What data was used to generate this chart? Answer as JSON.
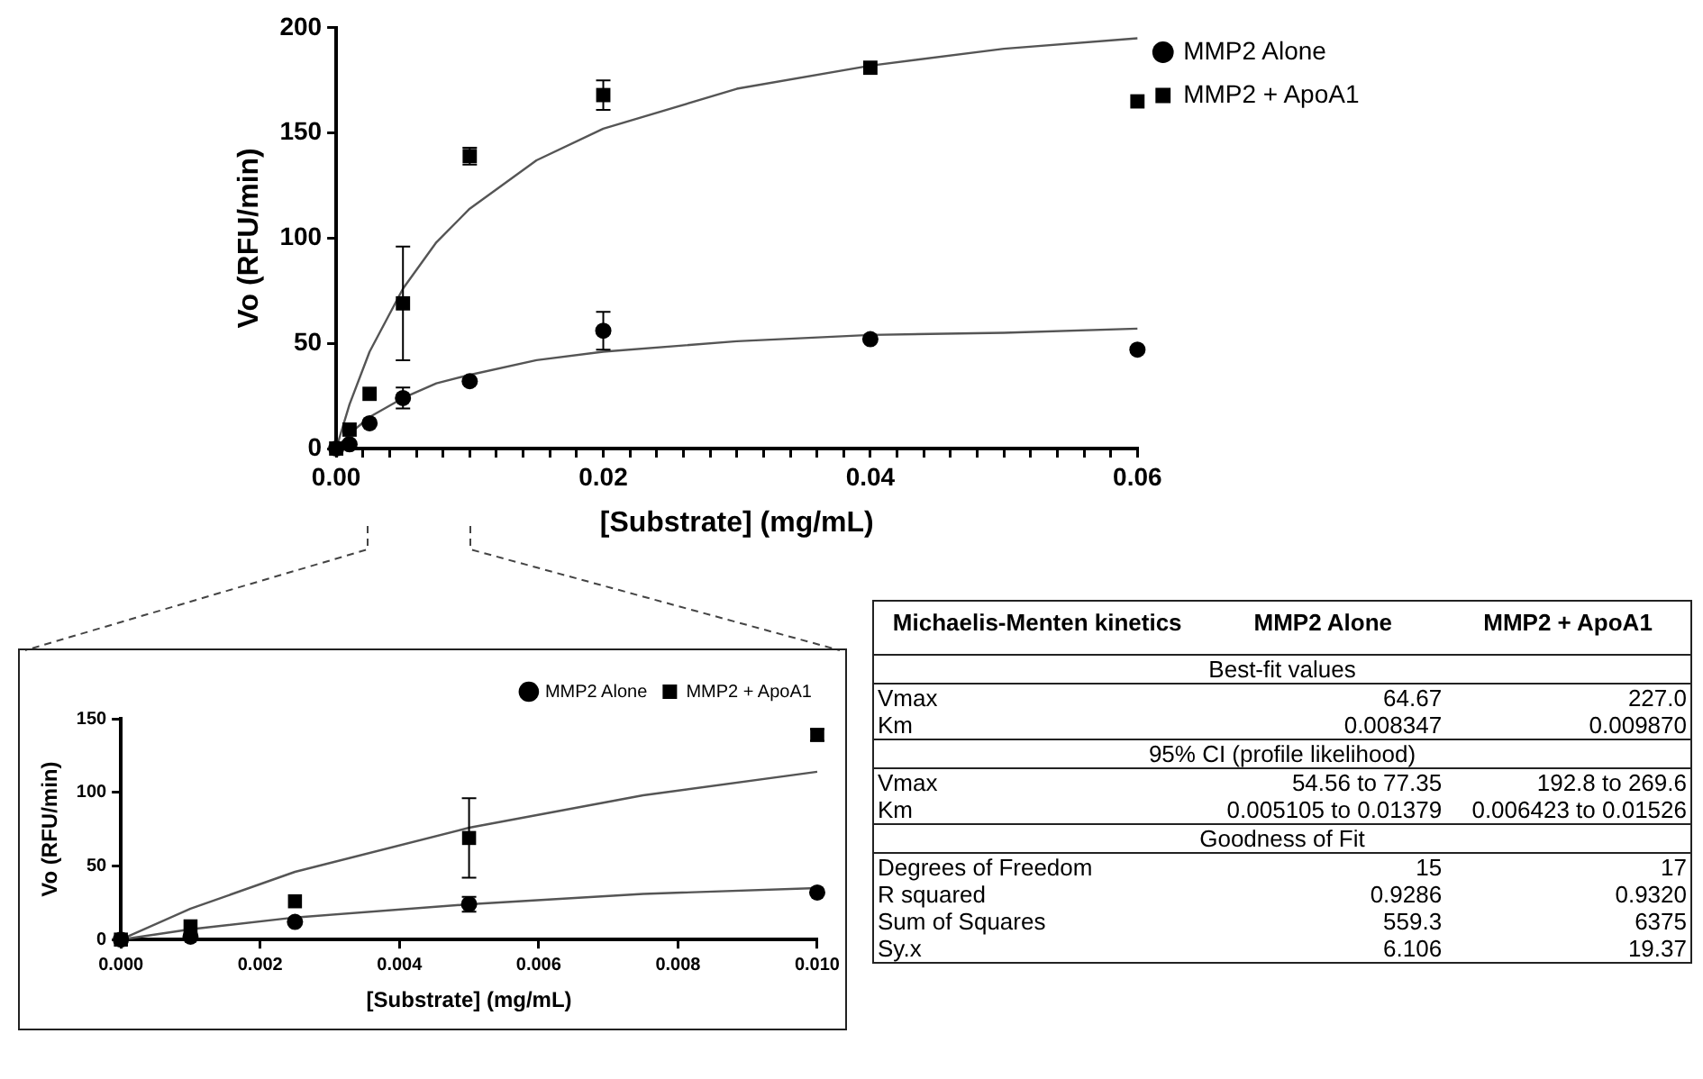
{
  "chart_data": [
    {
      "type": "scatter",
      "xlabel": "[Substrate] (mg/mL)",
      "ylabel": "Vo (RFU/min)",
      "xlim": [
        0,
        0.06
      ],
      "ylim": [
        0,
        200
      ],
      "xticks": [
        {
          "value": 0,
          "label": "0.00"
        },
        {
          "value": 0.002,
          "label": null
        },
        {
          "value": 0.004,
          "label": null
        },
        {
          "value": 0.006,
          "label": null
        },
        {
          "value": 0.008,
          "label": null
        },
        {
          "value": 0.01,
          "label": null
        },
        {
          "value": 0.012,
          "label": null
        },
        {
          "value": 0.014,
          "label": null
        },
        {
          "value": 0.016,
          "label": null
        },
        {
          "value": 0.018,
          "label": null
        },
        {
          "value": 0.02,
          "label": "0.02"
        },
        {
          "value": 0.022,
          "label": null
        },
        {
          "value": 0.024,
          "label": null
        },
        {
          "value": 0.026,
          "label": null
        },
        {
          "value": 0.028,
          "label": null
        },
        {
          "value": 0.03,
          "label": null
        },
        {
          "value": 0.032,
          "label": null
        },
        {
          "value": 0.034,
          "label": null
        },
        {
          "value": 0.036,
          "label": null
        },
        {
          "value": 0.038,
          "label": null
        },
        {
          "value": 0.04,
          "label": "0.04"
        },
        {
          "value": 0.042,
          "label": null
        },
        {
          "value": 0.044,
          "label": null
        },
        {
          "value": 0.046,
          "label": null
        },
        {
          "value": 0.048,
          "label": null
        },
        {
          "value": 0.05,
          "label": null
        },
        {
          "value": 0.052,
          "label": null
        },
        {
          "value": 0.054,
          "label": null
        },
        {
          "value": 0.056,
          "label": null
        },
        {
          "value": 0.058,
          "label": null
        },
        {
          "value": 0.06,
          "label": "0.06"
        }
      ],
      "yticks": [
        0,
        50,
        100,
        150,
        200
      ],
      "grid": false,
      "legend": "right",
      "series": [
        {
          "name": "MMP2 Alone",
          "color": "#000000",
          "marker": "circle",
          "x": [
            0,
            0.001,
            0.0025,
            0.005,
            0.01,
            0.02,
            0.04,
            0.06
          ],
          "values": [
            0,
            2,
            12,
            24,
            32,
            56,
            52,
            47
          ],
          "errors": [
            null,
            null,
            null,
            5,
            null,
            9,
            null,
            null
          ]
        },
        {
          "name": "MMP2 + ApoA1",
          "color": "#000000",
          "marker": "square",
          "x": [
            0,
            0.001,
            0.0025,
            0.005,
            0.01,
            0.02,
            0.04,
            0.06
          ],
          "values": [
            0,
            9,
            26,
            69,
            139,
            168,
            181,
            165
          ],
          "errors": [
            null,
            null,
            null,
            27,
            4,
            7,
            null,
            null
          ]
        },
        {
          "type": "line",
          "color": "#555555",
          "marker": "none",
          "x": [
            0,
            0.001,
            0.0025,
            0.005,
            0.0075,
            0.01,
            0.015,
            0.02,
            0.03,
            0.04,
            0.05,
            0.06
          ],
          "values": [
            0,
            7,
            15,
            24,
            31,
            35,
            42,
            46,
            51,
            54,
            55,
            57
          ]
        },
        {
          "type": "line",
          "color": "#555555",
          "marker": "none",
          "x": [
            0,
            0.001,
            0.0025,
            0.005,
            0.0075,
            0.01,
            0.015,
            0.02,
            0.03,
            0.04,
            0.05,
            0.06
          ],
          "values": [
            0,
            21,
            46,
            76,
            98,
            114,
            137,
            152,
            171,
            182,
            190,
            195
          ]
        }
      ]
    },
    {
      "type": "scatter",
      "xlabel": "[Substrate] (mg/mL)",
      "ylabel": "Vo (RFU/min)",
      "xlim": [
        0,
        0.01
      ],
      "ylim": [
        0,
        150
      ],
      "xticks": [
        {
          "value": 0,
          "label": "0.000"
        },
        {
          "value": 0.002,
          "label": "0.002"
        },
        {
          "value": 0.004,
          "label": "0.004"
        },
        {
          "value": 0.006,
          "label": "0.006"
        },
        {
          "value": 0.008,
          "label": "0.008"
        },
        {
          "value": 0.01,
          "label": "0.010"
        }
      ],
      "yticks": [
        0,
        50,
        100,
        150
      ],
      "grid": false,
      "legend": "top right",
      "series": [
        {
          "name": "MMP2 Alone",
          "color": "#000000",
          "marker": "circle",
          "x": [
            0,
            0.001,
            0.0025,
            0.005,
            0.01
          ],
          "values": [
            0,
            2,
            12,
            24,
            32
          ],
          "errors": [
            null,
            null,
            null,
            5,
            null
          ]
        },
        {
          "name": "MMP2 + ApoA1",
          "color": "#000000",
          "marker": "square",
          "x": [
            0,
            0.001,
            0.0025,
            0.005,
            0.01
          ],
          "values": [
            0,
            9,
            26,
            69,
            139
          ],
          "errors": [
            null,
            null,
            null,
            27,
            4
          ]
        },
        {
          "type": "line",
          "color": "#555555",
          "marker": "none",
          "x": [
            0,
            0.001,
            0.0025,
            0.005,
            0.0075,
            0.01
          ],
          "values": [
            0,
            7,
            15,
            24,
            31,
            35
          ]
        },
        {
          "type": "line",
          "color": "#555555",
          "marker": "none",
          "x": [
            0,
            0.001,
            0.0025,
            0.005,
            0.0075,
            0.01
          ],
          "values": [
            0,
            21,
            46,
            76,
            98,
            114
          ]
        }
      ]
    },
    {
      "type": "other",
      "categories": [
        "Michaelis-Menten kinetics",
        "MMP2 Alone",
        "MMP2 + ApoA1"
      ],
      "y_categories": [
        "Best-fit values",
        "Vmax",
        "Km",
        "95% CI (profile likelihood)",
        "Vmax",
        "Km",
        "Goodness of Fit",
        "Degrees of Freedom",
        "R squared",
        "Sum of Squares",
        "Sy.x"
      ],
      "cell_labels": [
        [
          null,
          null
        ],
        [
          "64.67",
          "227.0"
        ],
        [
          "0.008347",
          "0.009870"
        ],
        [
          null,
          null
        ],
        [
          "54.56 to 77.35",
          "192.8 to 269.6"
        ],
        [
          "0.005105 to 0.01379",
          "0.006423 to 0.01526"
        ],
        [
          null,
          null
        ],
        [
          "15",
          "17"
        ],
        [
          "0.9286",
          "0.9320"
        ],
        [
          "559.3",
          "6375"
        ],
        [
          "6.106",
          "19.37"
        ]
      ]
    }
  ]
}
